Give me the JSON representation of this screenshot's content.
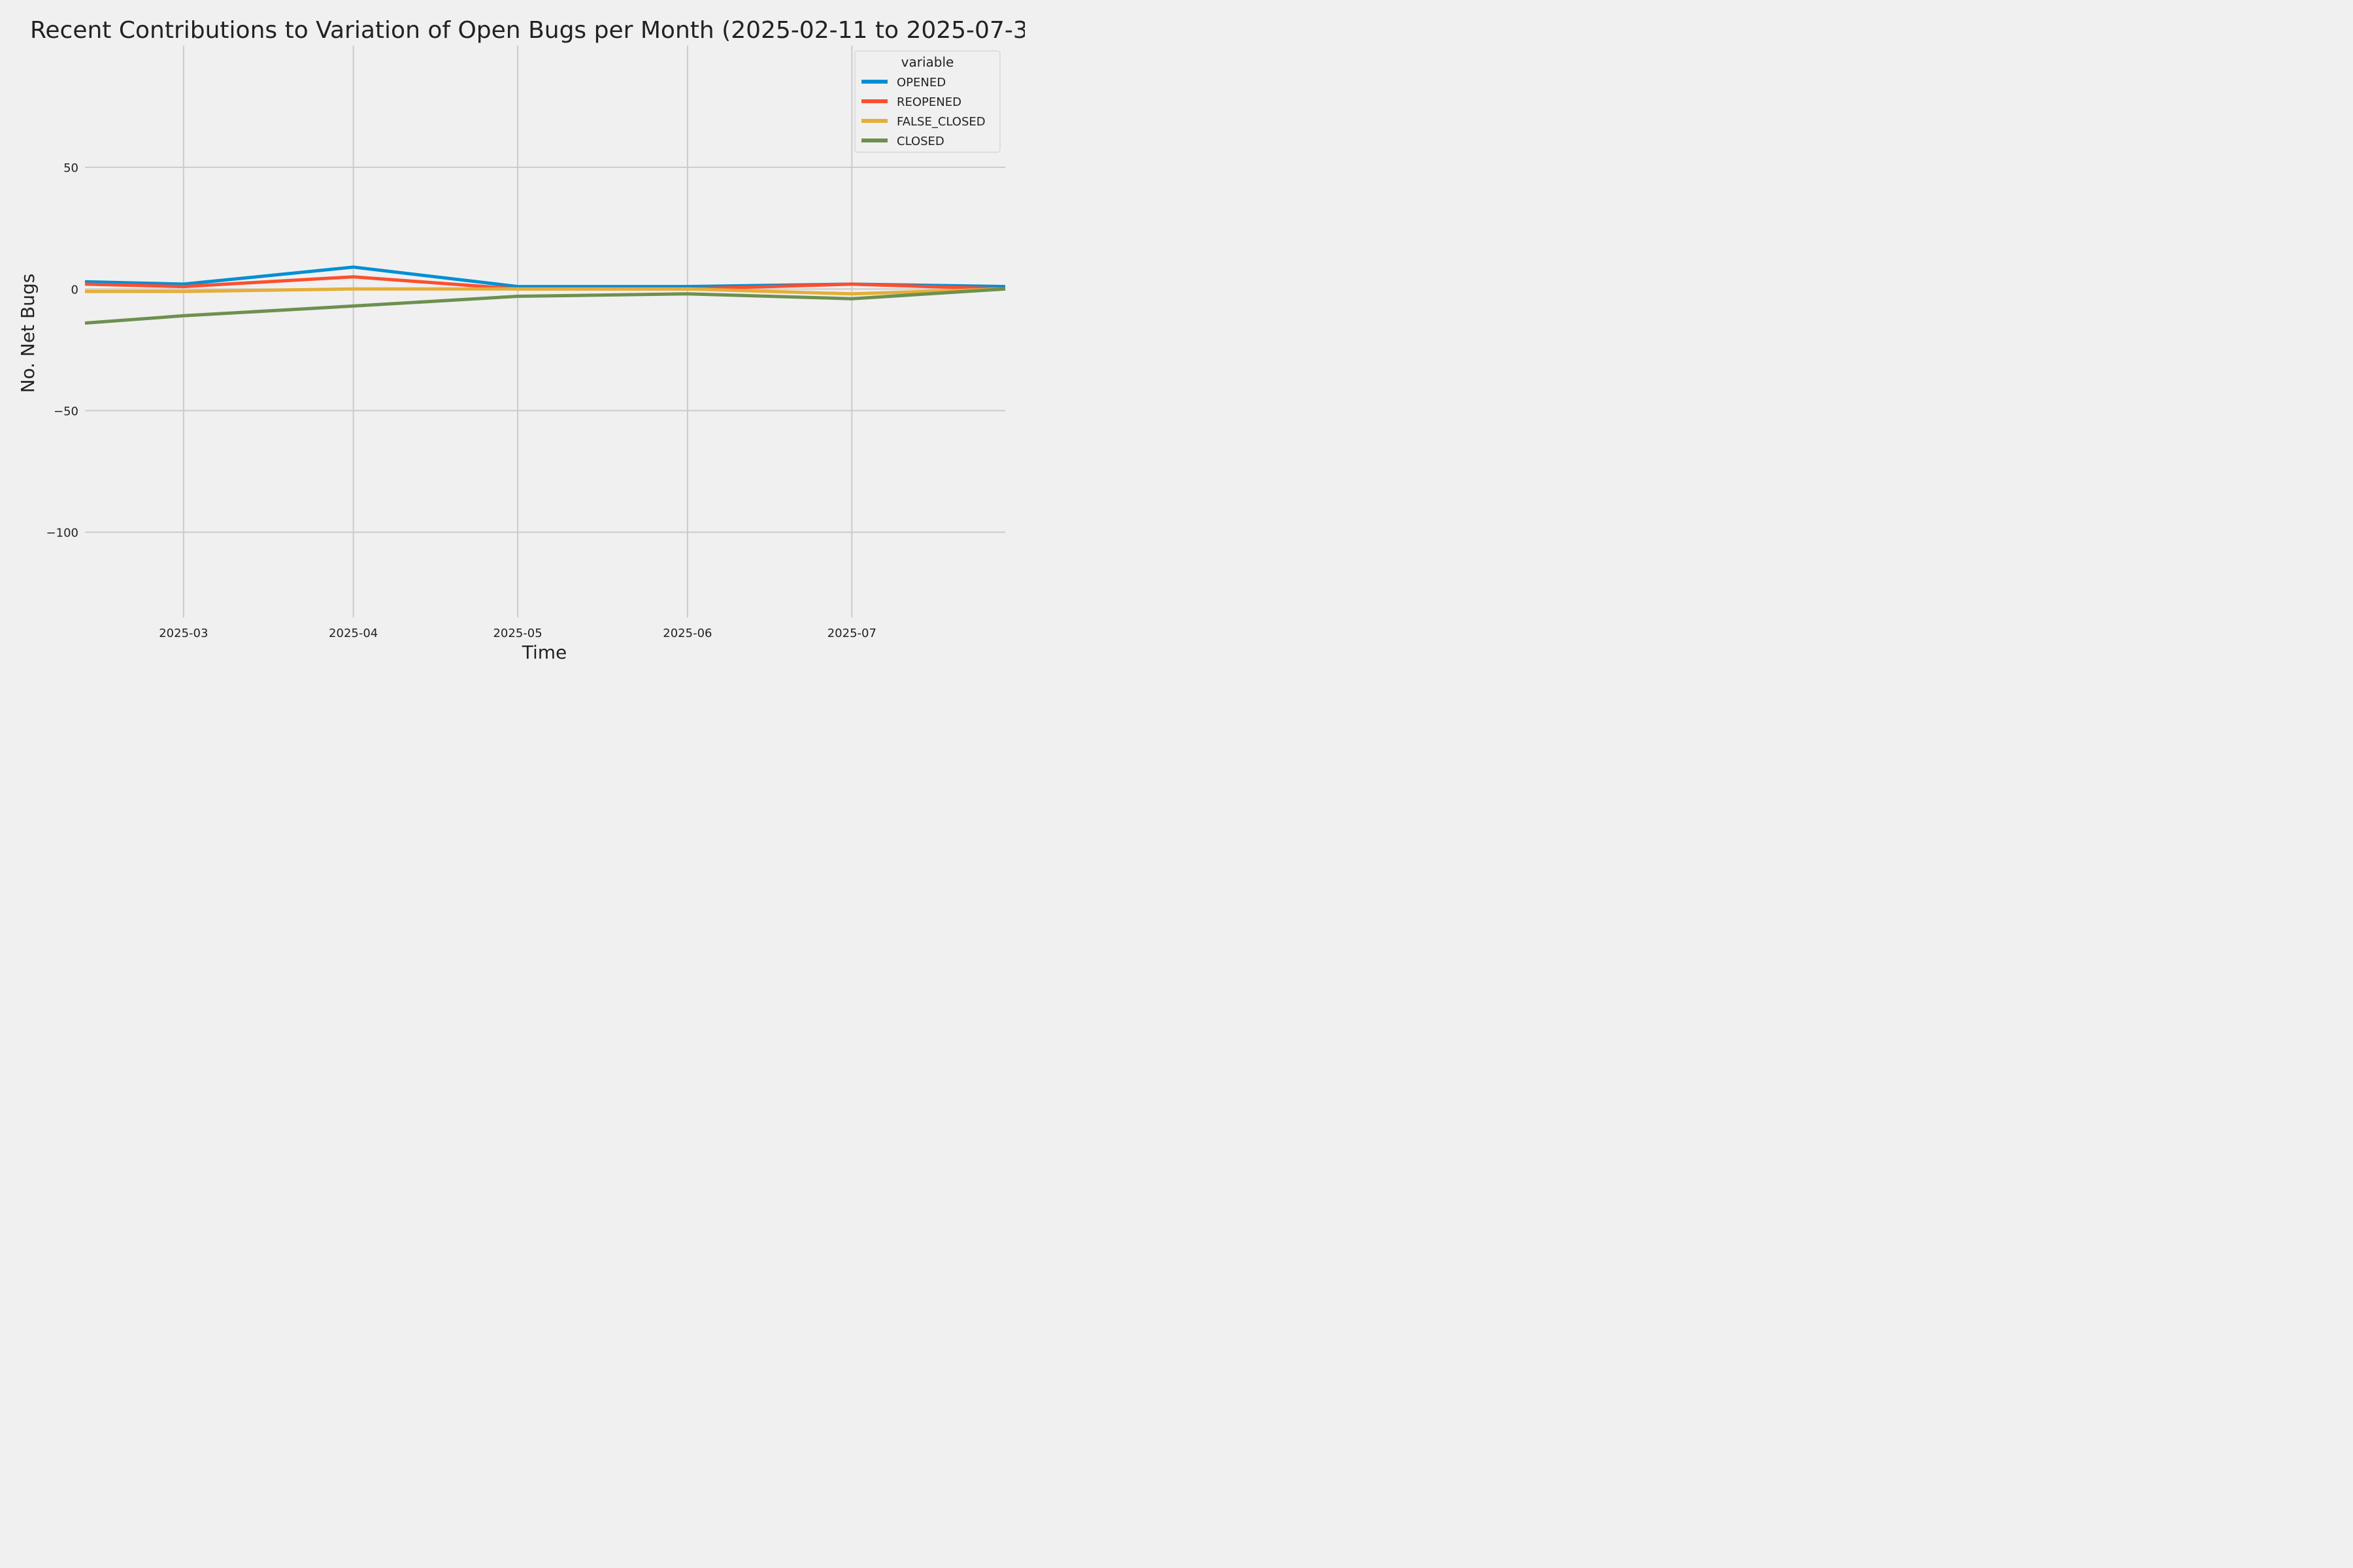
{
  "chart_data": {
    "type": "line",
    "title": "Recent Contributions to Variation of Open Bugs per Month (2025-02-11 to 2025-07-3",
    "xlabel": "Time",
    "ylabel": "No. Net Bugs",
    "x": [
      "2025-02-11",
      "2025-03-01",
      "2025-04-01",
      "2025-05-01",
      "2025-06-01",
      "2025-07-01",
      "2025-07-29"
    ],
    "x_ticks": [
      "2025-03",
      "2025-04",
      "2025-05",
      "2025-06",
      "2025-07"
    ],
    "x_tick_dates": [
      "2025-03-01",
      "2025-04-01",
      "2025-05-01",
      "2025-06-01",
      "2025-07-01"
    ],
    "xlim": [
      "2025-02-11",
      "2025-07-29"
    ],
    "y_ticks": [
      50,
      0,
      -50,
      -100
    ],
    "y_tick_labels": [
      "50",
      "0",
      "−50",
      "−100"
    ],
    "ylim": [
      -135,
      100
    ],
    "grid": true,
    "legend": {
      "title": "variable",
      "placement": "top-right"
    },
    "series": [
      {
        "name": "OPENED",
        "color": "#008fd5",
        "values": [
          3,
          2,
          9,
          1,
          1,
          2,
          1
        ]
      },
      {
        "name": "REOPENED",
        "color": "#fc4f30",
        "values": [
          2,
          1,
          5,
          0,
          0,
          2,
          0
        ]
      },
      {
        "name": "FALSE_CLOSED",
        "color": "#e5ae38",
        "values": [
          -1,
          -1,
          0,
          0,
          0,
          -2,
          0
        ]
      },
      {
        "name": "CLOSED",
        "color": "#6d904f",
        "values": [
          -14,
          -11,
          -7,
          -3,
          -2,
          -4,
          0
        ]
      }
    ]
  }
}
